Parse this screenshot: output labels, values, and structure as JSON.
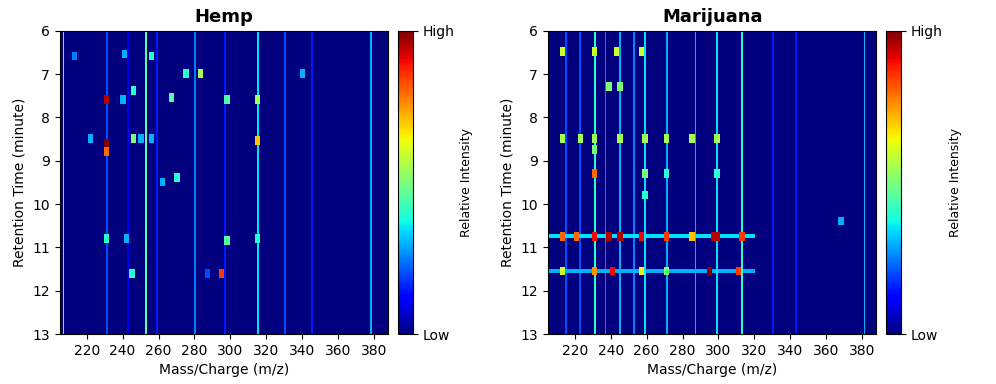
{
  "chart_data": [
    {
      "type": "heatmap",
      "title": "Hemp",
      "x_label": "Mass/Charge (m/z)",
      "y_label": "Retention Time (minute)",
      "xlim": [
        205,
        388
      ],
      "ylim": [
        13,
        6
      ],
      "xticks": [
        220,
        240,
        260,
        280,
        300,
        320,
        340,
        360,
        380
      ],
      "yticks": [
        6,
        7,
        8,
        9,
        10,
        11,
        12,
        13
      ],
      "colorbar": {
        "label": "Relative Intensity",
        "range": [
          0,
          1
        ],
        "ticks": [
          {
            "value": 0,
            "label": "Low"
          },
          {
            "value": 1,
            "label": "High"
          }
        ]
      },
      "streaks": [
        {
          "mz": 207,
          "intensity": 0.45
        },
        {
          "mz": 253,
          "intensity": 0.45
        },
        {
          "mz": 315,
          "intensity": 0.35
        },
        {
          "mz": 231,
          "intensity": 0.2
        },
        {
          "mz": 280,
          "intensity": 0.25
        },
        {
          "mz": 330,
          "intensity": 0.2
        },
        {
          "mz": 345,
          "intensity": 0.15
        },
        {
          "mz": 378,
          "intensity": 0.3
        },
        {
          "mz": 297,
          "intensity": 0.15
        },
        {
          "mz": 259,
          "intensity": 0.15
        },
        {
          "mz": 243,
          "intensity": 0.1
        }
      ],
      "bands": [],
      "spots": [
        {
          "mz": 231,
          "rt": 7.6,
          "intensity": 0.95
        },
        {
          "mz": 231,
          "rt": 8.6,
          "intensity": 1.0
        },
        {
          "mz": 231,
          "rt": 8.8,
          "intensity": 0.8
        },
        {
          "mz": 231,
          "rt": 10.8,
          "intensity": 0.4
        },
        {
          "mz": 241,
          "rt": 6.55,
          "intensity": 0.3
        },
        {
          "mz": 246,
          "rt": 7.4,
          "intensity": 0.4
        },
        {
          "mz": 246,
          "rt": 8.5,
          "intensity": 0.5
        },
        {
          "mz": 256,
          "rt": 6.6,
          "intensity": 0.4
        },
        {
          "mz": 267,
          "rt": 7.55,
          "intensity": 0.45
        },
        {
          "mz": 270,
          "rt": 9.4,
          "intensity": 0.4
        },
        {
          "mz": 275,
          "rt": 7.0,
          "intensity": 0.4
        },
        {
          "mz": 283,
          "rt": 7.0,
          "intensity": 0.55
        },
        {
          "mz": 298,
          "rt": 7.6,
          "intensity": 0.45
        },
        {
          "mz": 298,
          "rt": 10.85,
          "intensity": 0.45
        },
        {
          "mz": 295,
          "rt": 11.6,
          "intensity": 0.85
        },
        {
          "mz": 315,
          "rt": 7.6,
          "intensity": 0.55
        },
        {
          "mz": 315,
          "rt": 8.55,
          "intensity": 0.7
        },
        {
          "mz": 315,
          "rt": 10.8,
          "intensity": 0.4
        },
        {
          "mz": 340,
          "rt": 7.0,
          "intensity": 0.3
        },
        {
          "mz": 242,
          "rt": 10.8,
          "intensity": 0.3
        },
        {
          "mz": 245,
          "rt": 11.6,
          "intensity": 0.4
        },
        {
          "mz": 262,
          "rt": 9.5,
          "intensity": 0.3
        },
        {
          "mz": 213,
          "rt": 6.6,
          "intensity": 0.25
        },
        {
          "mz": 240,
          "rt": 7.6,
          "intensity": 0.3
        },
        {
          "mz": 222,
          "rt": 8.5,
          "intensity": 0.3
        },
        {
          "mz": 256,
          "rt": 8.5,
          "intensity": 0.3
        },
        {
          "mz": 250,
          "rt": 8.5,
          "intensity": 0.3
        },
        {
          "mz": 287,
          "rt": 11.6,
          "intensity": 0.2
        }
      ]
    },
    {
      "type": "heatmap",
      "title": "Marijuana",
      "x_label": "Mass/Charge (m/z)",
      "y_label": "Retention Time (minute)",
      "xlim": [
        205,
        388
      ],
      "ylim": [
        13,
        6
      ],
      "xticks": [
        220,
        240,
        260,
        280,
        300,
        320,
        340,
        360,
        380
      ],
      "yticks": [
        6,
        7,
        8,
        9,
        10,
        11,
        12,
        13
      ],
      "colorbar": {
        "label": "Relative Intensity",
        "range": [
          0,
          1
        ],
        "ticks": [
          {
            "value": 0,
            "label": "Low"
          },
          {
            "value": 1,
            "label": "High"
          }
        ]
      },
      "streaks": [
        {
          "mz": 231,
          "intensity": 0.4
        },
        {
          "mz": 259,
          "intensity": 0.35
        },
        {
          "mz": 271,
          "intensity": 0.3
        },
        {
          "mz": 287,
          "intensity": 0.3
        },
        {
          "mz": 299,
          "intensity": 0.35
        },
        {
          "mz": 313,
          "intensity": 0.4
        },
        {
          "mz": 245,
          "intensity": 0.3
        },
        {
          "mz": 215,
          "intensity": 0.2
        },
        {
          "mz": 223,
          "intensity": 0.2
        },
        {
          "mz": 381,
          "intensity": 0.3
        },
        {
          "mz": 330,
          "intensity": 0.15
        },
        {
          "mz": 343,
          "intensity": 0.15
        },
        {
          "mz": 237,
          "intensity": 0.25
        },
        {
          "mz": 253,
          "intensity": 0.25
        }
      ],
      "bands": [
        {
          "rt": 10.75,
          "mz_range": [
            205,
            320
          ],
          "intensity": 0.35
        },
        {
          "rt": 11.55,
          "mz_range": [
            205,
            320
          ],
          "intensity": 0.3
        }
      ],
      "spots": [
        {
          "mz": 213,
          "rt": 6.5,
          "intensity": 0.6
        },
        {
          "mz": 231,
          "rt": 6.5,
          "intensity": 0.6
        },
        {
          "mz": 243,
          "rt": 6.5,
          "intensity": 0.6
        },
        {
          "mz": 257,
          "rt": 6.5,
          "intensity": 0.6
        },
        {
          "mz": 239,
          "rt": 7.3,
          "intensity": 0.5
        },
        {
          "mz": 245,
          "rt": 7.3,
          "intensity": 0.5
        },
        {
          "mz": 213,
          "rt": 8.5,
          "intensity": 0.55
        },
        {
          "mz": 223,
          "rt": 8.5,
          "intensity": 0.55
        },
        {
          "mz": 231,
          "rt": 8.5,
          "intensity": 0.55
        },
        {
          "mz": 245,
          "rt": 8.5,
          "intensity": 0.55
        },
        {
          "mz": 259,
          "rt": 8.5,
          "intensity": 0.55
        },
        {
          "mz": 271,
          "rt": 8.5,
          "intensity": 0.55
        },
        {
          "mz": 285,
          "rt": 8.5,
          "intensity": 0.55
        },
        {
          "mz": 299,
          "rt": 8.5,
          "intensity": 0.55
        },
        {
          "mz": 231,
          "rt": 8.75,
          "intensity": 0.5
        },
        {
          "mz": 231,
          "rt": 9.3,
          "intensity": 0.8
        },
        {
          "mz": 259,
          "rt": 9.3,
          "intensity": 0.5
        },
        {
          "mz": 271,
          "rt": 9.3,
          "intensity": 0.4
        },
        {
          "mz": 299,
          "rt": 9.3,
          "intensity": 0.4
        },
        {
          "mz": 259,
          "rt": 9.8,
          "intensity": 0.4
        },
        {
          "mz": 213,
          "rt": 10.75,
          "intensity": 0.8
        },
        {
          "mz": 221,
          "rt": 10.75,
          "intensity": 0.8
        },
        {
          "mz": 231,
          "rt": 10.75,
          "intensity": 0.9
        },
        {
          "mz": 239,
          "rt": 10.75,
          "intensity": 0.95
        },
        {
          "mz": 245,
          "rt": 10.75,
          "intensity": 0.95
        },
        {
          "mz": 257,
          "rt": 10.75,
          "intensity": 0.9
        },
        {
          "mz": 271,
          "rt": 10.75,
          "intensity": 0.85
        },
        {
          "mz": 285,
          "rt": 10.75,
          "intensity": 0.7
        },
        {
          "mz": 297,
          "rt": 10.75,
          "intensity": 0.95
        },
        {
          "mz": 299,
          "rt": 10.75,
          "intensity": 0.95
        },
        {
          "mz": 313,
          "rt": 10.75,
          "intensity": 0.85
        },
        {
          "mz": 213,
          "rt": 11.55,
          "intensity": 0.6
        },
        {
          "mz": 231,
          "rt": 11.55,
          "intensity": 0.75
        },
        {
          "mz": 241,
          "rt": 11.55,
          "intensity": 0.9
        },
        {
          "mz": 257,
          "rt": 11.55,
          "intensity": 0.65
        },
        {
          "mz": 271,
          "rt": 11.55,
          "intensity": 0.5
        },
        {
          "mz": 295,
          "rt": 11.55,
          "intensity": 1.0
        },
        {
          "mz": 311,
          "rt": 11.55,
          "intensity": 0.85
        },
        {
          "mz": 368,
          "rt": 10.4,
          "intensity": 0.3
        }
      ]
    }
  ]
}
